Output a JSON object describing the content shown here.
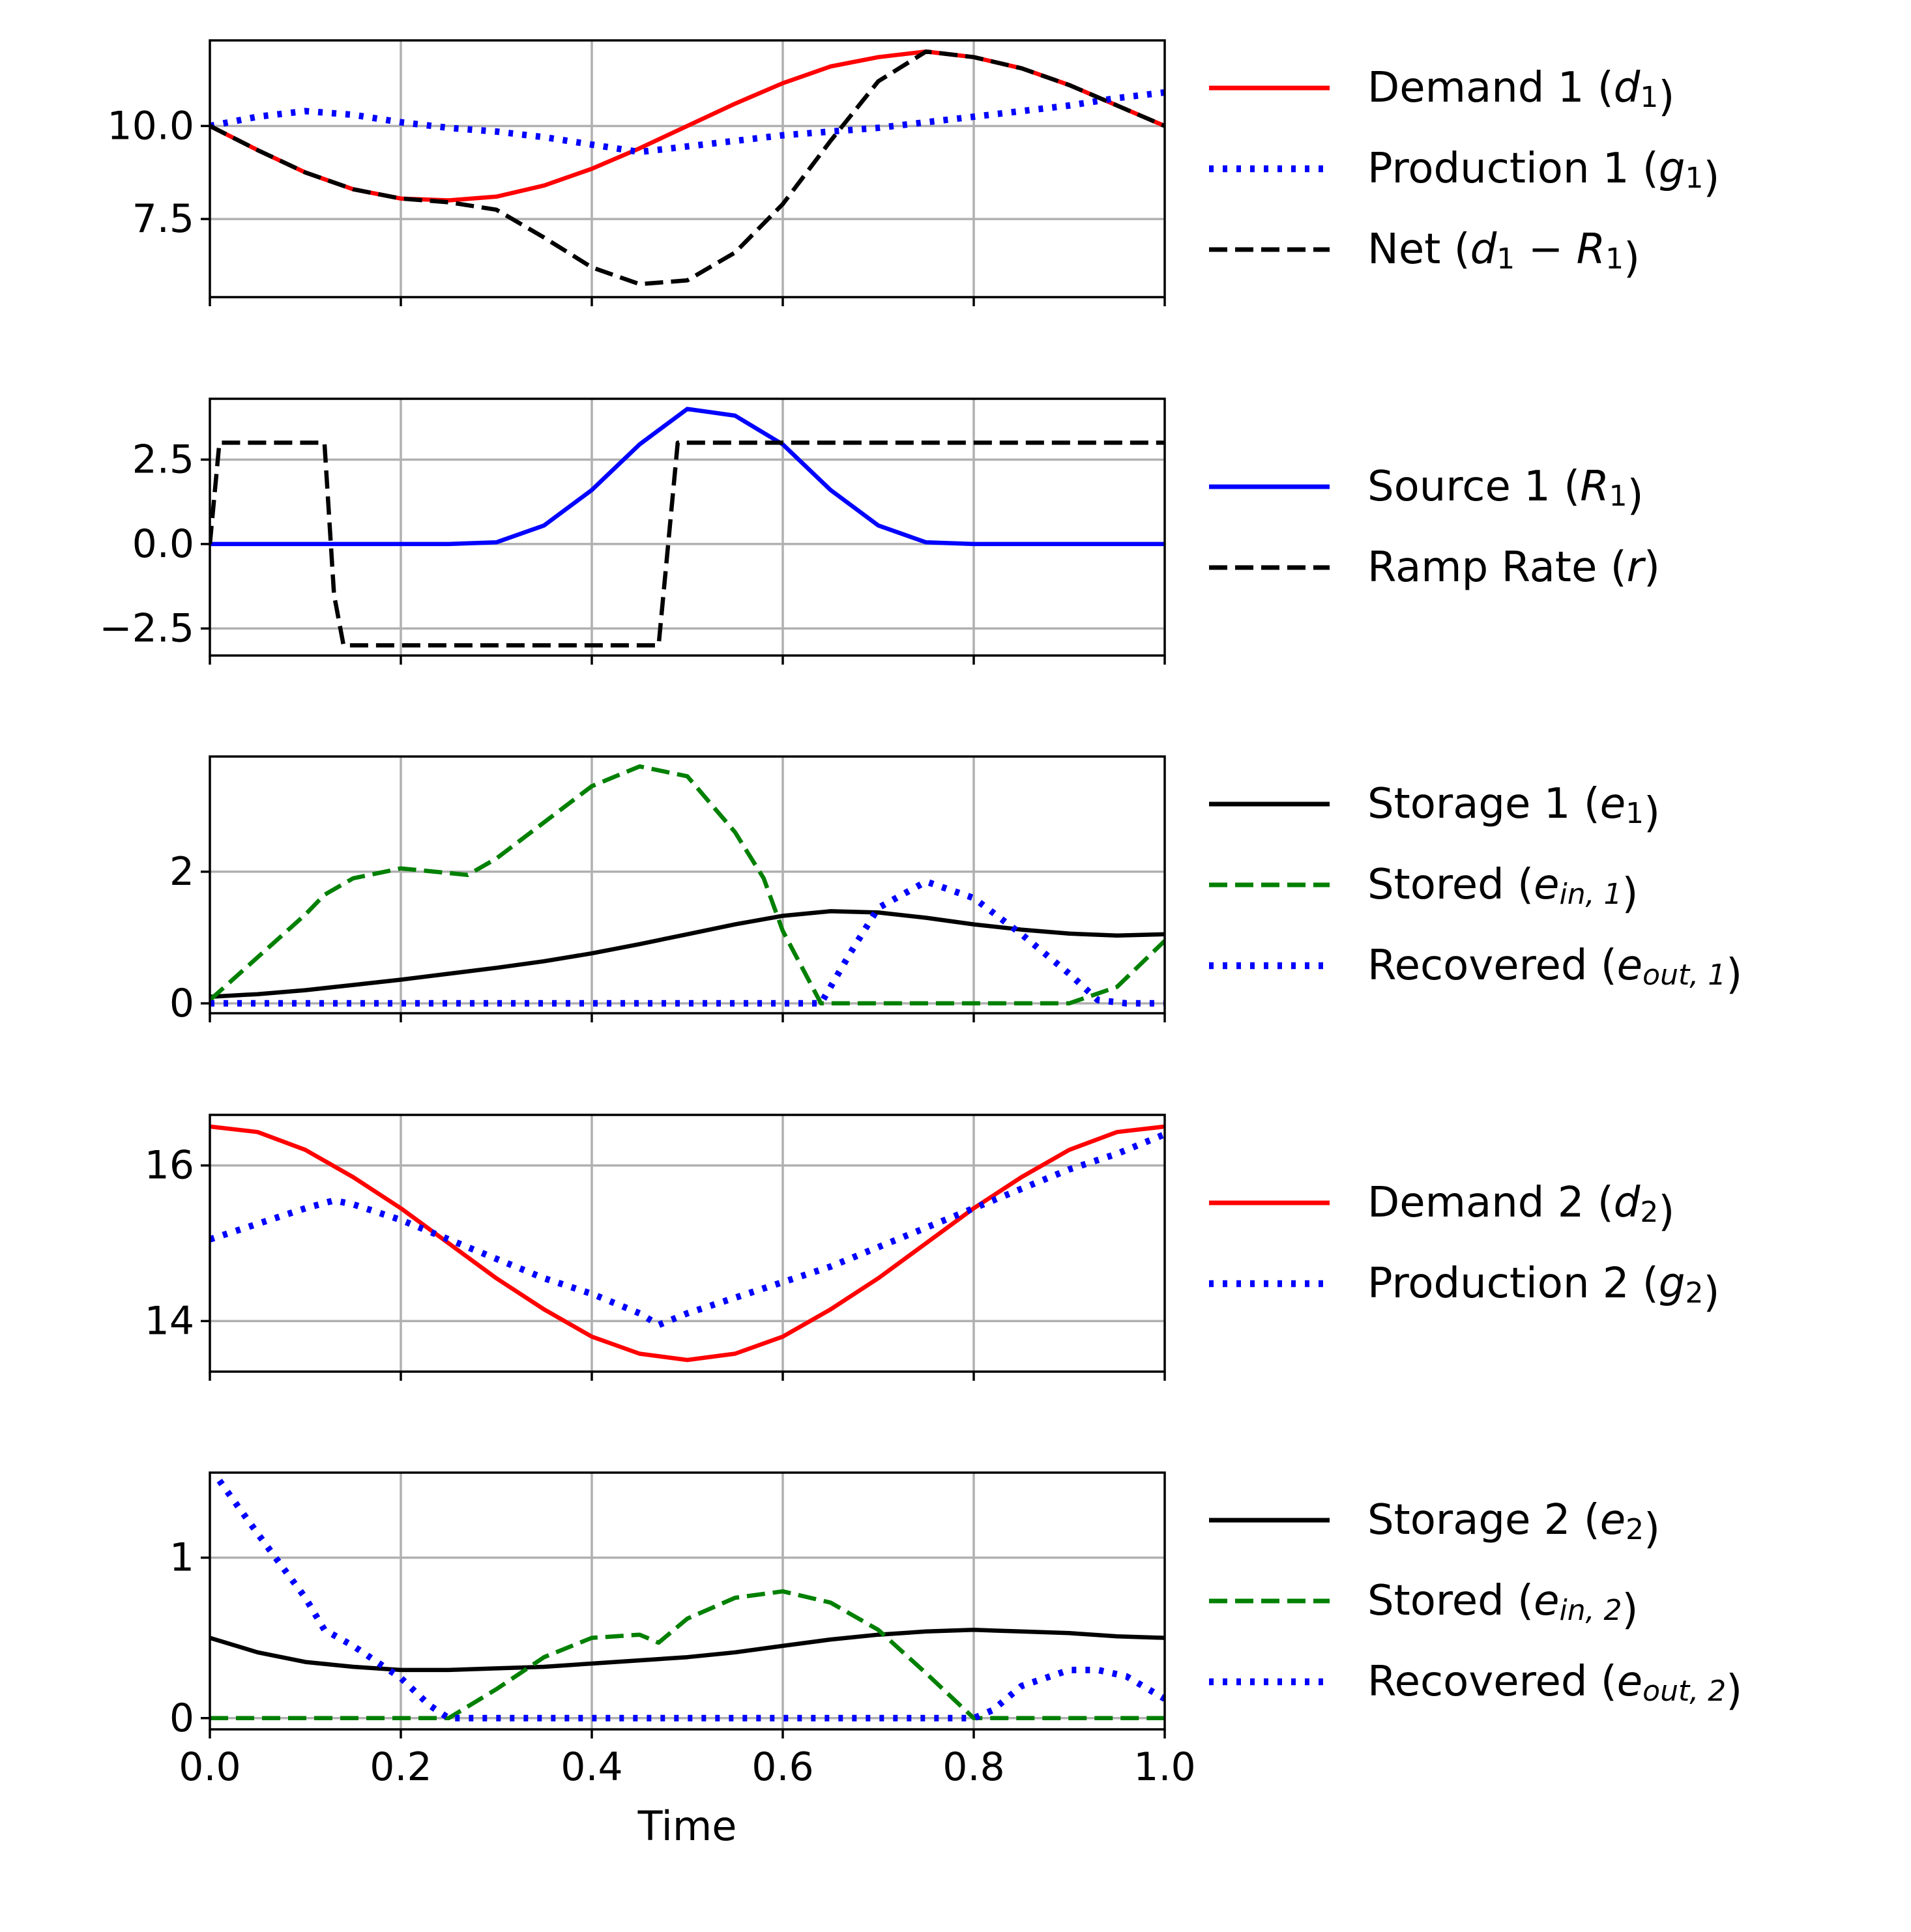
{
  "colors": {
    "red": "#ff0000",
    "blue": "#0000ff",
    "black": "#000000",
    "green": "#008000",
    "grid": "#b0b0b0"
  },
  "chart_data": [
    {
      "type": "line",
      "xlim": [
        0,
        1
      ],
      "ylim": [
        5.4,
        12.3
      ],
      "yticks": [
        7.5,
        10.0
      ],
      "ytick_labels": [
        "7.5",
        "10.0"
      ],
      "xticks": [
        0,
        0.2,
        0.4,
        0.6,
        0.8,
        1.0
      ],
      "xtick_labels_visible": false,
      "grid": true,
      "legend_position": "right",
      "series": [
        {
          "name": "Demand 1",
          "symbol": "d",
          "sub": "1",
          "style": "solid",
          "color": "#ff0000",
          "x": [
            0,
            0.05,
            0.1,
            0.15,
            0.2,
            0.25,
            0.3,
            0.35,
            0.4,
            0.45,
            0.5,
            0.55,
            0.6,
            0.65,
            0.7,
            0.75,
            0.8,
            0.85,
            0.9,
            0.95,
            1.0
          ],
          "y": [
            10.0,
            9.35,
            8.75,
            8.3,
            8.05,
            8.0,
            8.1,
            8.4,
            8.85,
            9.4,
            10.0,
            10.6,
            11.15,
            11.6,
            11.85,
            12.0,
            11.85,
            11.55,
            11.1,
            10.55,
            10.0
          ]
        },
        {
          "name": "Production 1",
          "symbol": "g",
          "sub": "1",
          "style": "dotted",
          "color": "#0000ff",
          "x": [
            0,
            0.05,
            0.1,
            0.15,
            0.2,
            0.25,
            0.3,
            0.35,
            0.4,
            0.45,
            0.5,
            0.55,
            0.6,
            0.65,
            0.7,
            0.75,
            0.8,
            0.85,
            0.9,
            0.95,
            1.0
          ],
          "y": [
            10.0,
            10.25,
            10.4,
            10.3,
            10.1,
            9.95,
            9.85,
            9.7,
            9.5,
            9.3,
            9.45,
            9.6,
            9.75,
            9.85,
            9.95,
            10.1,
            10.25,
            10.4,
            10.55,
            10.75,
            10.9
          ]
        },
        {
          "name": "Net",
          "symbol": "d",
          "sub": "1",
          "minus_symbol": "R",
          "minus_sub": "1",
          "style": "dashed",
          "color": "#000000",
          "x": [
            0,
            0.05,
            0.1,
            0.15,
            0.2,
            0.25,
            0.3,
            0.35,
            0.4,
            0.45,
            0.5,
            0.55,
            0.6,
            0.65,
            0.7,
            0.75,
            0.8,
            0.85,
            0.9,
            0.95,
            1.0
          ],
          "y": [
            10.0,
            9.35,
            8.75,
            8.3,
            8.05,
            7.95,
            7.75,
            7.0,
            6.2,
            5.75,
            5.85,
            6.6,
            7.9,
            9.6,
            11.2,
            12.0,
            11.85,
            11.55,
            11.1,
            10.55,
            10.0
          ]
        }
      ]
    },
    {
      "type": "line",
      "xlim": [
        0,
        1
      ],
      "ylim": [
        -3.3,
        4.3
      ],
      "yticks": [
        -2.5,
        0.0,
        2.5
      ],
      "ytick_labels": [
        "−2.5",
        "0.0",
        "2.5"
      ],
      "xticks": [
        0,
        0.2,
        0.4,
        0.6,
        0.8,
        1.0
      ],
      "xtick_labels_visible": false,
      "grid": true,
      "legend_position": "right",
      "series": [
        {
          "name": "Source 1",
          "symbol": "R",
          "sub": "1",
          "style": "solid",
          "color": "#0000ff",
          "x": [
            0,
            0.1,
            0.2,
            0.25,
            0.3,
            0.35,
            0.4,
            0.45,
            0.5,
            0.55,
            0.6,
            0.65,
            0.7,
            0.75,
            0.8,
            0.9,
            1.0
          ],
          "y": [
            0,
            0,
            0,
            0,
            0.05,
            0.55,
            1.6,
            2.95,
            4.0,
            3.8,
            2.95,
            1.6,
            0.55,
            0.05,
            0,
            0,
            0
          ]
        },
        {
          "name": "Ramp Rate",
          "symbol": "r",
          "style": "dashed",
          "color": "#000000",
          "x": [
            0,
            0.01,
            0.12,
            0.13,
            0.14,
            0.47,
            0.48,
            0.49,
            1.0
          ],
          "y": [
            0,
            3.0,
            3.0,
            -1.5,
            -3.0,
            -3.0,
            0,
            3.0,
            3.0
          ]
        }
      ]
    },
    {
      "type": "line",
      "xlim": [
        0,
        1
      ],
      "ylim": [
        -0.15,
        3.75
      ],
      "yticks": [
        0,
        2
      ],
      "ytick_labels": [
        "0",
        "2"
      ],
      "xticks": [
        0,
        0.2,
        0.4,
        0.6,
        0.8,
        1.0
      ],
      "xtick_labels_visible": false,
      "grid": true,
      "legend_position": "right",
      "series": [
        {
          "name": "Storage 1",
          "symbol": "e",
          "sub": "1",
          "style": "solid",
          "color": "#000000",
          "x": [
            0,
            0.05,
            0.1,
            0.15,
            0.2,
            0.25,
            0.3,
            0.35,
            0.4,
            0.45,
            0.5,
            0.55,
            0.6,
            0.65,
            0.7,
            0.75,
            0.8,
            0.85,
            0.9,
            0.95,
            1.0
          ],
          "y": [
            0.1,
            0.14,
            0.2,
            0.28,
            0.36,
            0.45,
            0.54,
            0.64,
            0.76,
            0.9,
            1.05,
            1.2,
            1.33,
            1.4,
            1.38,
            1.3,
            1.2,
            1.12,
            1.06,
            1.03,
            1.05
          ]
        },
        {
          "name": "Stored",
          "symbol": "e",
          "sub": "in, 1",
          "style": "dashed",
          "color": "#008000",
          "x": [
            0,
            0.05,
            0.1,
            0.12,
            0.15,
            0.2,
            0.25,
            0.27,
            0.3,
            0.35,
            0.4,
            0.45,
            0.5,
            0.55,
            0.58,
            0.6,
            0.64,
            0.7,
            0.8,
            0.9,
            0.95,
            1.0
          ],
          "y": [
            0.05,
            0.7,
            1.35,
            1.65,
            1.9,
            2.05,
            1.98,
            1.95,
            2.2,
            2.75,
            3.3,
            3.6,
            3.45,
            2.6,
            1.9,
            1.1,
            0.0,
            0.0,
            0.0,
            0.0,
            0.25,
            0.95
          ]
        },
        {
          "name": "Recovered",
          "symbol": "e",
          "sub": "out, 1",
          "style": "dotted",
          "color": "#0000ff",
          "x": [
            0,
            0.1,
            0.2,
            0.3,
            0.4,
            0.5,
            0.6,
            0.64,
            0.67,
            0.7,
            0.75,
            0.8,
            0.85,
            0.9,
            0.93,
            0.96,
            1.0
          ],
          "y": [
            0,
            0,
            0,
            0,
            0,
            0,
            0,
            0,
            0.75,
            1.45,
            1.85,
            1.6,
            1.05,
            0.45,
            0.05,
            0.0,
            0.0
          ]
        }
      ]
    },
    {
      "type": "line",
      "xlim": [
        0,
        1
      ],
      "ylim": [
        13.35,
        16.65
      ],
      "yticks": [
        14,
        16
      ],
      "ytick_labels": [
        "14",
        "16"
      ],
      "xticks": [
        0,
        0.2,
        0.4,
        0.6,
        0.8,
        1.0
      ],
      "xtick_labels_visible": false,
      "grid": true,
      "legend_position": "right",
      "series": [
        {
          "name": "Demand 2",
          "symbol": "d",
          "sub": "2",
          "style": "solid",
          "color": "#ff0000",
          "x": [
            0,
            0.05,
            0.1,
            0.15,
            0.2,
            0.25,
            0.3,
            0.35,
            0.4,
            0.45,
            0.5,
            0.55,
            0.6,
            0.65,
            0.7,
            0.75,
            0.8,
            0.85,
            0.9,
            0.95,
            1.0
          ],
          "y": [
            16.5,
            16.43,
            16.2,
            15.85,
            15.45,
            15.0,
            14.55,
            14.15,
            13.8,
            13.58,
            13.5,
            13.58,
            13.8,
            14.15,
            14.55,
            15.0,
            15.45,
            15.85,
            16.2,
            16.43,
            16.5
          ]
        },
        {
          "name": "Production 2",
          "symbol": "g",
          "sub": "2",
          "style": "dotted",
          "color": "#0000ff",
          "x": [
            0,
            0.05,
            0.1,
            0.13,
            0.15,
            0.2,
            0.25,
            0.3,
            0.35,
            0.4,
            0.45,
            0.47,
            0.5,
            0.55,
            0.6,
            0.65,
            0.7,
            0.75,
            0.8,
            0.85,
            0.9,
            0.95,
            1.0
          ],
          "y": [
            15.05,
            15.25,
            15.45,
            15.55,
            15.5,
            15.3,
            15.05,
            14.8,
            14.55,
            14.35,
            14.1,
            13.95,
            14.1,
            14.3,
            14.5,
            14.7,
            14.95,
            15.2,
            15.45,
            15.7,
            15.95,
            16.15,
            16.4
          ]
        }
      ]
    },
    {
      "type": "line",
      "xlim": [
        0,
        1
      ],
      "ylim": [
        -0.07,
        1.53
      ],
      "yticks": [
        0,
        1
      ],
      "ytick_labels": [
        "0",
        "1"
      ],
      "xticks": [
        0,
        0.2,
        0.4,
        0.6,
        0.8,
        1.0
      ],
      "xtick_labels": [
        "0.0",
        "0.2",
        "0.4",
        "0.6",
        "0.8",
        "1.0"
      ],
      "xtick_labels_visible": true,
      "xlabel": "Time",
      "grid": true,
      "legend_position": "right",
      "series": [
        {
          "name": "Storage 2",
          "symbol": "e",
          "sub": "2",
          "style": "solid",
          "color": "#000000",
          "x": [
            0,
            0.05,
            0.1,
            0.15,
            0.2,
            0.25,
            0.3,
            0.35,
            0.4,
            0.45,
            0.5,
            0.55,
            0.6,
            0.65,
            0.7,
            0.75,
            0.8,
            0.85,
            0.9,
            0.95,
            1.0
          ],
          "y": [
            0.5,
            0.41,
            0.35,
            0.32,
            0.3,
            0.3,
            0.31,
            0.32,
            0.34,
            0.36,
            0.38,
            0.41,
            0.45,
            0.49,
            0.52,
            0.54,
            0.55,
            0.54,
            0.53,
            0.51,
            0.5
          ]
        },
        {
          "name": "Stored",
          "symbol": "e",
          "sub": "in, 2",
          "style": "dashed",
          "color": "#008000",
          "x": [
            0,
            0.1,
            0.2,
            0.25,
            0.3,
            0.35,
            0.4,
            0.45,
            0.47,
            0.5,
            0.55,
            0.6,
            0.65,
            0.7,
            0.75,
            0.8,
            0.85,
            0.9,
            1.0
          ],
          "y": [
            0,
            0,
            0,
            0.0,
            0.18,
            0.38,
            0.5,
            0.52,
            0.47,
            0.62,
            0.75,
            0.79,
            0.72,
            0.55,
            0.28,
            0.0,
            0.0,
            0.0,
            0.0
          ]
        },
        {
          "name": "Recovered",
          "symbol": "e",
          "sub": "out, 2",
          "style": "dotted",
          "color": "#0000ff",
          "x": [
            0.01,
            0.05,
            0.1,
            0.12,
            0.15,
            0.2,
            0.23,
            0.25,
            0.3,
            0.4,
            0.5,
            0.6,
            0.7,
            0.8,
            0.82,
            0.85,
            0.9,
            0.93,
            0.96,
            1.0
          ],
          "y": [
            1.48,
            1.15,
            0.75,
            0.55,
            0.45,
            0.25,
            0.08,
            0.0,
            0.0,
            0.0,
            0.0,
            0.0,
            0.0,
            0.0,
            0.05,
            0.2,
            0.3,
            0.3,
            0.26,
            0.12
          ]
        }
      ]
    }
  ]
}
